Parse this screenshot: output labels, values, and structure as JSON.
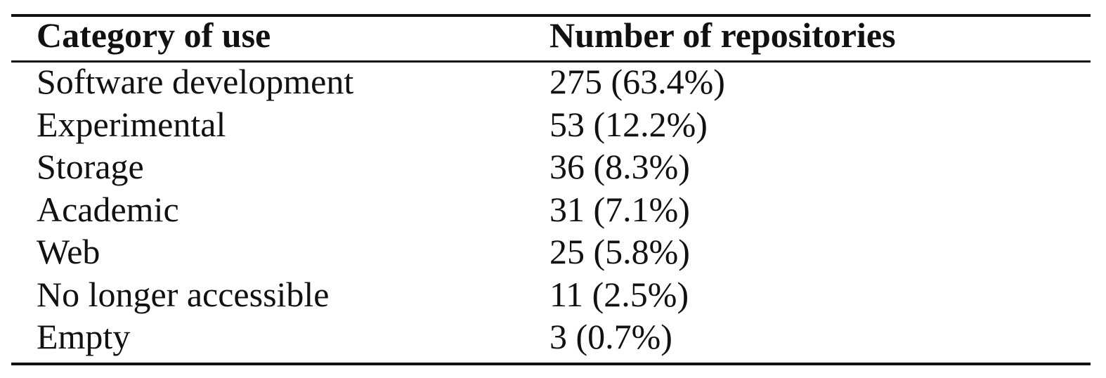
{
  "table": {
    "header": [
      "Category of use",
      "Number of repositories"
    ],
    "rows": [
      [
        "Software development",
        "275 (63.4%)"
      ],
      [
        "Experimental",
        "53 (12.2%)"
      ],
      [
        "Storage",
        "36 (8.3%)"
      ],
      [
        "Academic",
        "31 (7.1%)"
      ],
      [
        "Web",
        "25 (5.8%)"
      ],
      [
        "No longer accessible",
        "11 (2.5%)"
      ],
      [
        "Empty",
        "3 (0.7%)"
      ]
    ]
  }
}
